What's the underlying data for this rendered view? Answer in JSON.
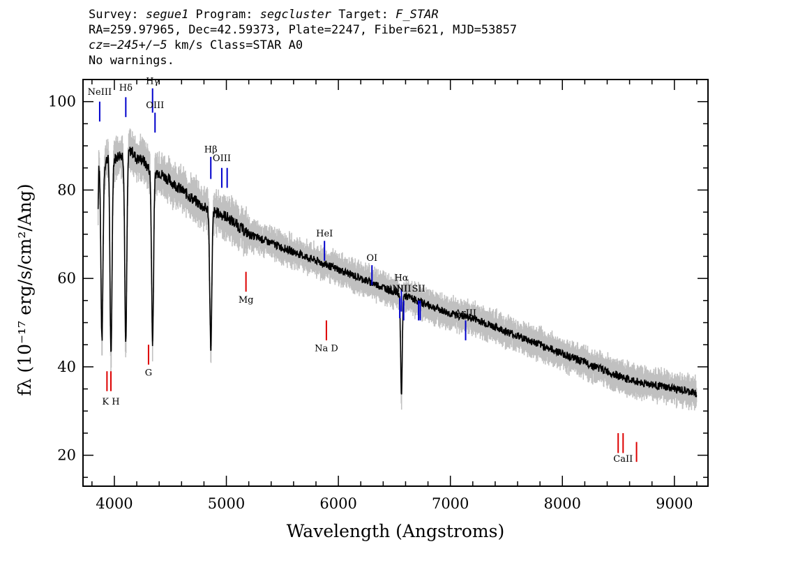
{
  "header": {
    "line1_prefix": "Survey: ",
    "survey": "segue1",
    "line1_mid1": " Program: ",
    "program": "segcluster",
    "line1_mid2": " Target: ",
    "target": "F_STAR",
    "line2": "RA=259.97965, Dec=42.59373, Plate=2247, Fiber=621, MJD=53857",
    "cz": "cz=−245+/−5",
    "line3_rest": " km/s Class=STAR A0",
    "line4": "No warnings."
  },
  "chart_data": {
    "type": "line",
    "xlabel": "Wavelength (Angstroms)",
    "ylabel": "fλ (10⁻¹⁷ erg/s/cm²/Ang)",
    "xlim": [
      3720,
      9300
    ],
    "ylim": [
      13,
      105
    ],
    "xticks": [
      4000,
      5000,
      6000,
      7000,
      8000,
      9000
    ],
    "xtick_labels": [
      "4000",
      "5000",
      "6000",
      "7000",
      "8000",
      "9000"
    ],
    "yticks": [
      20,
      40,
      60,
      80,
      100
    ],
    "ytick_labels": [
      "20",
      "40",
      "60",
      "80",
      "100"
    ],
    "colors": {
      "spectrum": "#000000",
      "error_band": "#c0c0c0",
      "emission": "#0000cc",
      "absorption": "#dd0000"
    },
    "continuum": [
      [
        3840,
        45
      ],
      [
        3860,
        86
      ],
      [
        3900,
        85
      ],
      [
        3950,
        88
      ],
      [
        4000,
        87
      ],
      [
        4050,
        88
      ],
      [
        4100,
        88
      ],
      [
        4150,
        89
      ],
      [
        4200,
        87
      ],
      [
        4250,
        87
      ],
      [
        4300,
        85
      ],
      [
        4350,
        84
      ],
      [
        4400,
        84
      ],
      [
        4450,
        83
      ],
      [
        4500,
        82
      ],
      [
        4600,
        80
      ],
      [
        4700,
        78
      ],
      [
        4800,
        76
      ],
      [
        4900,
        75
      ],
      [
        5000,
        74
      ],
      [
        5100,
        72
      ],
      [
        5200,
        70
      ],
      [
        5400,
        68
      ],
      [
        5600,
        66
      ],
      [
        5800,
        64
      ],
      [
        6000,
        62
      ],
      [
        6200,
        60
      ],
      [
        6400,
        58
      ],
      [
        6600,
        56
      ],
      [
        6800,
        54
      ],
      [
        7000,
        52
      ],
      [
        7200,
        51
      ],
      [
        7400,
        49
      ],
      [
        7600,
        47
      ],
      [
        7800,
        45
      ],
      [
        8000,
        43
      ],
      [
        8200,
        41
      ],
      [
        8400,
        39
      ],
      [
        8600,
        37
      ],
      [
        8800,
        36
      ],
      [
        9000,
        35
      ],
      [
        9200,
        34
      ]
    ],
    "absorption_dips": [
      [
        3889,
        46
      ],
      [
        3970,
        42
      ],
      [
        4102,
        45
      ],
      [
        4341,
        46
      ],
      [
        4861,
        44
      ],
      [
        6563,
        33
      ]
    ],
    "emission_lines": [
      {
        "label": "NeIII",
        "x": 3869,
        "y_top": 100,
        "y_bot": 95.5,
        "label_y": 101.5
      },
      {
        "label": "Hδ",
        "x": 4102,
        "y_top": 101,
        "y_bot": 96.5,
        "label_y": 102.5
      },
      {
        "label": "Hγ",
        "x": 4341,
        "y_top": 103,
        "y_bot": 97.5,
        "label_y": 104
      },
      {
        "label": "OIII",
        "x": 4363,
        "y_top": 97.5,
        "y_bot": 93,
        "label_y": 98.5
      },
      {
        "label": "Hβ",
        "x": 4861,
        "y_top": 87.5,
        "y_bot": 82.5,
        "label_y": 88.5
      },
      {
        "label": "OIII",
        "x": 4959,
        "y_top": 85,
        "y_bot": 80.5,
        "label_y": 86.5
      },
      {
        "label": "",
        "x": 5007,
        "y_top": 85,
        "y_bot": 80.5,
        "label_y": 86.5
      },
      {
        "label": "HeI",
        "x": 5876,
        "y_top": 68.5,
        "y_bot": 64,
        "label_y": 69.5
      },
      {
        "label": "OI",
        "x": 6300,
        "y_top": 63,
        "y_bot": 58.5,
        "label_y": 64
      },
      {
        "label": "NII",
        "x": 6548,
        "y_top": 55.5,
        "y_bot": 51,
        "label_y": 57
      },
      {
        "label": "Hα",
        "x": 6563,
        "y_top": 57.5,
        "y_bot": 52.5,
        "label_y": 59.5
      },
      {
        "label": "NII",
        "x": 6583,
        "y_top": 55,
        "y_bot": 50.5,
        "label_y": 57
      },
      {
        "label": "SII",
        "x": 6716,
        "y_top": 55,
        "y_bot": 50.5,
        "label_y": 57
      },
      {
        "label": "",
        "x": 6731,
        "y_top": 55,
        "y_bot": 50.5,
        "label_y": 57
      },
      {
        "label": "ArIII",
        "x": 7136,
        "y_top": 50.5,
        "y_bot": 46,
        "label_y": 51.5
      }
    ],
    "absorption_lines": [
      {
        "label": "",
        "x": 3934,
        "y_top": 39,
        "y_bot": 34.5
      },
      {
        "label": "K H",
        "x": 3969,
        "y_top": 39,
        "y_bot": 34.5,
        "label_y": 31.5
      },
      {
        "label": "G",
        "x": 4305,
        "y_top": 45,
        "y_bot": 40.5,
        "label_y": 38
      },
      {
        "label": "Mg",
        "x": 5175,
        "y_top": 61.5,
        "y_bot": 57,
        "label_y": 54.5
      },
      {
        "label": "Na D",
        "x": 5893,
        "y_top": 50.5,
        "y_bot": 46,
        "label_y": 43.5
      },
      {
        "label": "",
        "x": 8498,
        "y_top": 25,
        "y_bot": 20.5
      },
      {
        "label": "CaII",
        "x": 8542,
        "y_top": 25,
        "y_bot": 20.5,
        "label_y": 18.5
      },
      {
        "label": "",
        "x": 8662,
        "y_top": 23,
        "y_bot": 18.5
      }
    ]
  }
}
